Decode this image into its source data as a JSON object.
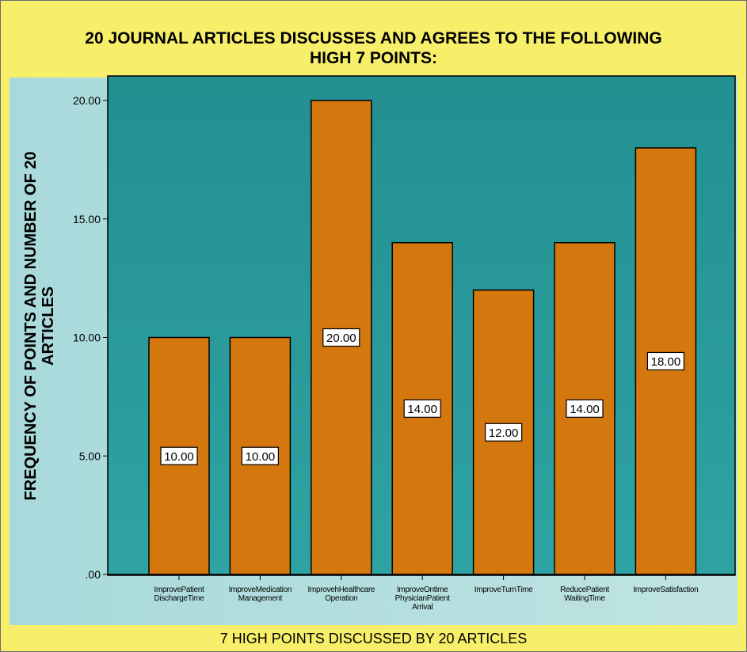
{
  "chart_data": {
    "type": "bar",
    "title": "20 JOURNAL ARTICLES DISCUSSES AND AGREES TO THE FOLLOWING HIGH 7 POINTS:",
    "title_lines": [
      "20 JOURNAL ARTICLES DISCUSSES AND AGREES TO THE FOLLOWING",
      "HIGH 7 POINTS:"
    ],
    "xlabel": "7 HIGH POINTS DISCUSSED BY 20 ARTICLES",
    "ylabel": "FREQUENCY OF POINTS AND NUMBER OF 20 ARTICLES",
    "ylabel_lines": [
      "FREQUENCY OF POINTS AND NUMBER OF 20",
      "ARTICLES"
    ],
    "categories": [
      [
        "ImprovePatient",
        "DischargeTime"
      ],
      [
        "ImproveMedication",
        "Management"
      ],
      [
        "ImprovehHealthcare",
        "Operation"
      ],
      [
        "ImproveOntime",
        "PhysicianPatient",
        "Arrival"
      ],
      [
        "ImproveTurnTime"
      ],
      [
        "ReducePatient",
        "WaitingTime"
      ],
      [
        "ImproveSatisfaction"
      ]
    ],
    "values": [
      10,
      10,
      20,
      14,
      12,
      14,
      18
    ],
    "value_labels": [
      "10.00",
      "10.00",
      "20.00",
      "14.00",
      "12.00",
      "14.00",
      "18.00"
    ],
    "ylim": [
      0,
      20
    ],
    "y_ticks": [
      0,
      5,
      10,
      15,
      20
    ],
    "y_tick_labels": [
      ".00",
      "5.00",
      "10.00",
      "15.00",
      "20.00"
    ],
    "grid": false,
    "colors": {
      "frame_bg": "#f7ef6a",
      "plot_bg": "#2a9a9b",
      "bar_fill": "#d4770e",
      "bar_stroke": "#000000",
      "label_bg": "#ffffff"
    }
  }
}
